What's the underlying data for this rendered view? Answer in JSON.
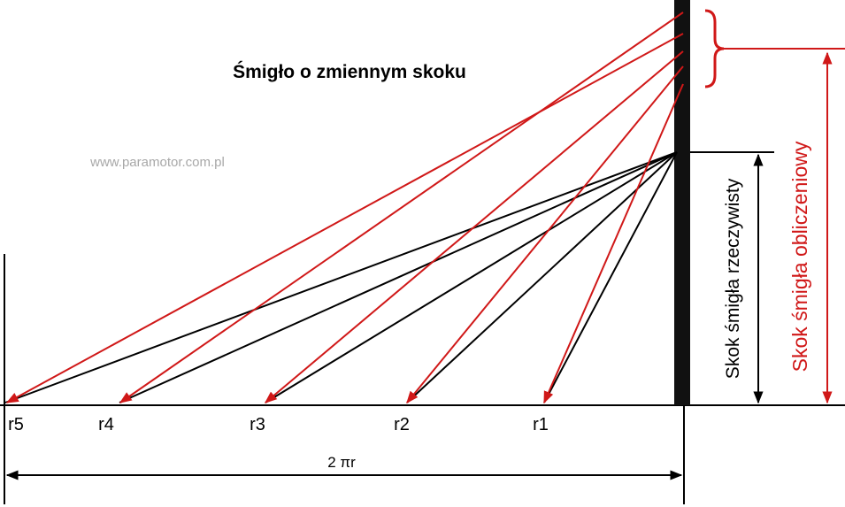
{
  "title": "Śmigło o zmiennym skoku",
  "watermark": "www.paramotor.com.pl",
  "radii": [
    "r5",
    "r4",
    "r3",
    "r2",
    "r1"
  ],
  "circumference_label": "2 πr",
  "actual_pitch_label": "Skok śmigła rzeczywisty",
  "calculated_pitch_label": "Skok śmigła obliczeniowy"
}
